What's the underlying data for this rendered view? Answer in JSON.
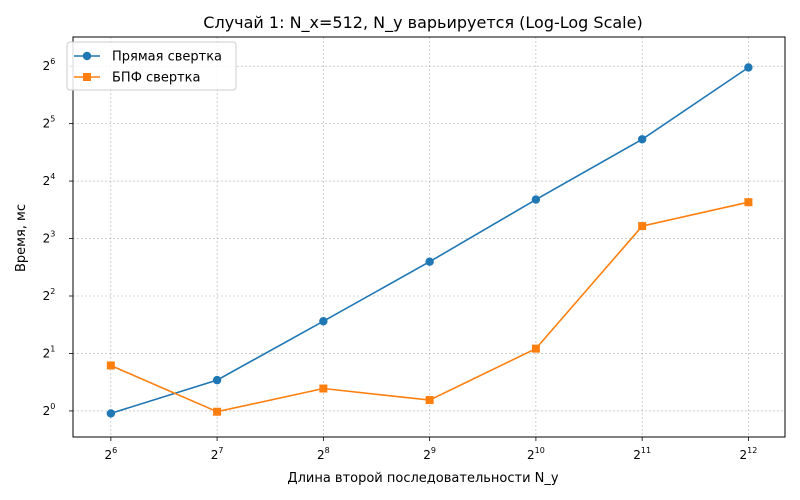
{
  "chart_data": {
    "type": "line",
    "title": "Случай 1: N_x=512, N_y варьируется (Log-Log Scale)",
    "xlabel": "Длина второй последовательности N_y",
    "ylabel": "Время, мс",
    "xscale": "log2",
    "yscale": "log2",
    "x": [
      64,
      128,
      256,
      512,
      1024,
      2048,
      4096
    ],
    "xticks": [
      {
        "base": "2",
        "exp": "6"
      },
      {
        "base": "2",
        "exp": "7"
      },
      {
        "base": "2",
        "exp": "8"
      },
      {
        "base": "2",
        "exp": "9"
      },
      {
        "base": "2",
        "exp": "10"
      },
      {
        "base": "2",
        "exp": "11"
      },
      {
        "base": "2",
        "exp": "12"
      }
    ],
    "yticks": [
      {
        "base": "2",
        "exp": "0"
      },
      {
        "base": "2",
        "exp": "1"
      },
      {
        "base": "2",
        "exp": "2"
      },
      {
        "base": "2",
        "exp": "3"
      },
      {
        "base": "2",
        "exp": "4"
      },
      {
        "base": "2",
        "exp": "5"
      },
      {
        "base": "2",
        "exp": "6"
      }
    ],
    "xlim": [
      50,
      5200
    ],
    "ylim": [
      0.73,
      91
    ],
    "grid": true,
    "legend_position": "top-left",
    "series": [
      {
        "name": "Прямая свертка",
        "color": "#1f77b4",
        "marker": "circle",
        "values": [
          0.97,
          1.45,
          2.95,
          6.05,
          12.8,
          26.5,
          63.0
        ]
      },
      {
        "name": "БПФ свертка",
        "color": "#ff7f0e",
        "marker": "square",
        "values": [
          1.73,
          0.99,
          1.31,
          1.14,
          2.12,
          9.3,
          12.4
        ]
      }
    ]
  }
}
